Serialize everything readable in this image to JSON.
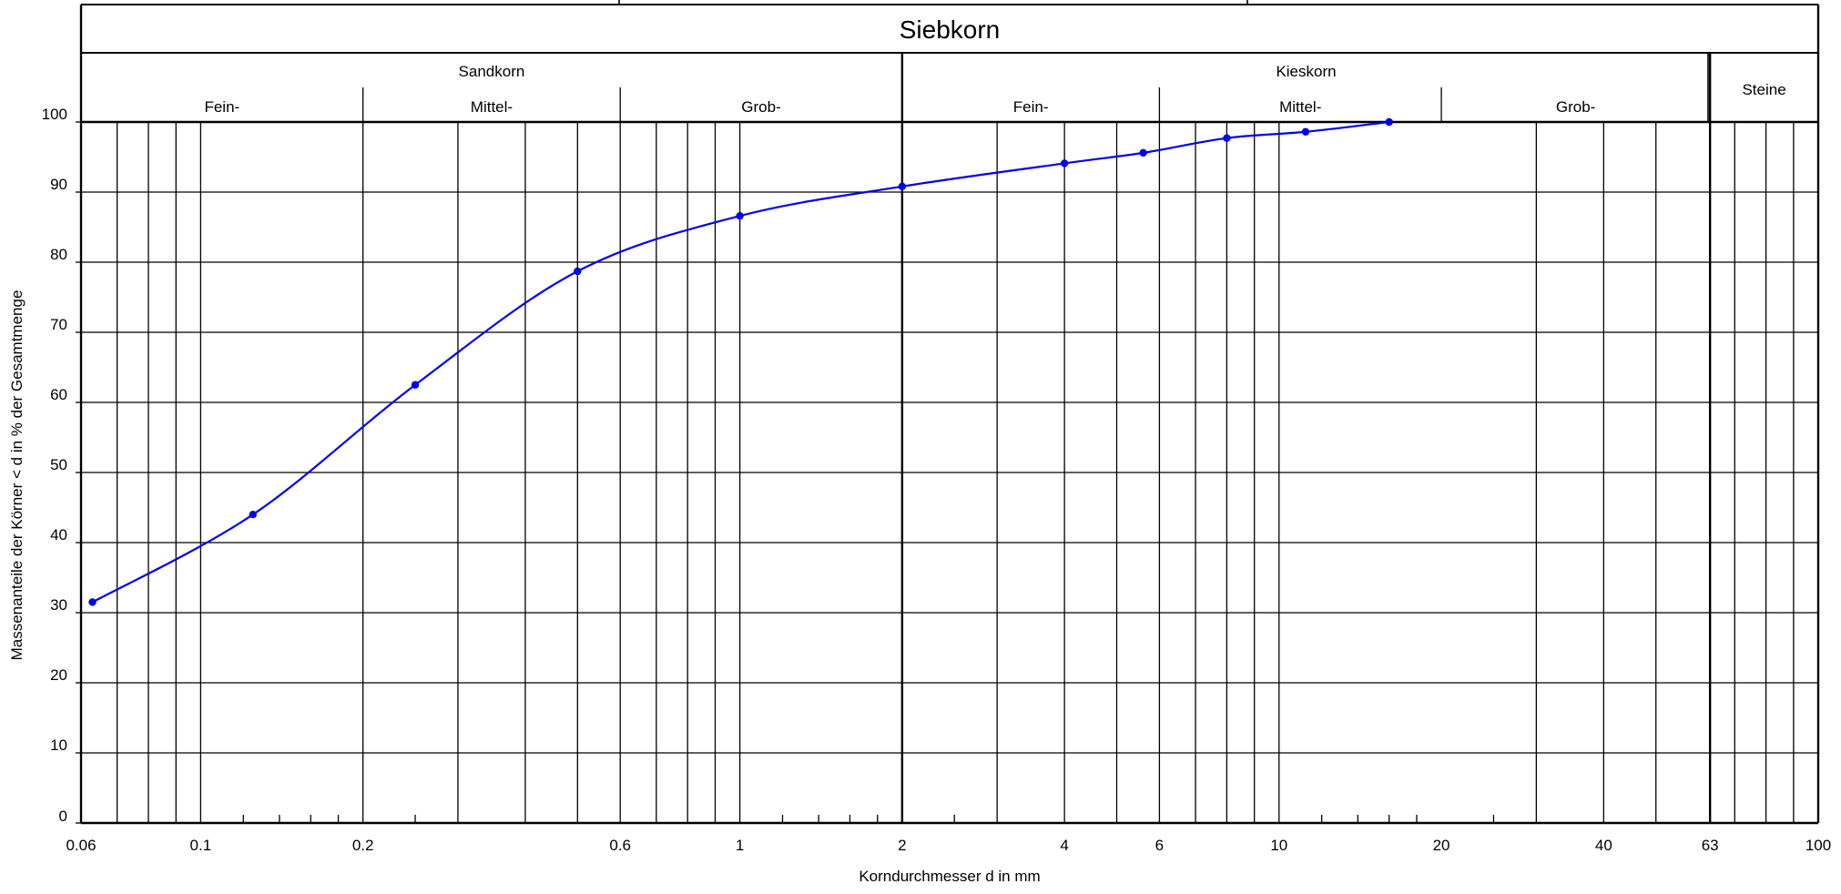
{
  "chart_data": {
    "type": "line",
    "title": "Siebkorn",
    "xlabel": "Korndurchmesser d in mm",
    "ylabel": "Massenanteile der Körner < d in % der Gesamtmenge",
    "xscale": "log",
    "xlim": [
      0.06,
      100
    ],
    "ylim": [
      0,
      100
    ],
    "grid": true,
    "x_ticks": [
      {
        "value": 0.06,
        "label": "0.06"
      },
      {
        "value": 0.1,
        "label": "0.1"
      },
      {
        "value": 0.2,
        "label": "0.2"
      },
      {
        "value": 0.6,
        "label": "0.6"
      },
      {
        "value": 1,
        "label": "1"
      },
      {
        "value": 2,
        "label": "2"
      },
      {
        "value": 4,
        "label": "4"
      },
      {
        "value": 6,
        "label": "6"
      },
      {
        "value": 10,
        "label": "10"
      },
      {
        "value": 20,
        "label": "20"
      },
      {
        "value": 40,
        "label": "40"
      },
      {
        "value": 63,
        "label": "63"
      },
      {
        "value": 100,
        "label": "100"
      }
    ],
    "y_ticks": [
      {
        "value": 0,
        "label": "0"
      },
      {
        "value": 10,
        "label": "10"
      },
      {
        "value": 20,
        "label": "20"
      },
      {
        "value": 30,
        "label": "30"
      },
      {
        "value": 40,
        "label": "40"
      },
      {
        "value": 50,
        "label": "50"
      },
      {
        "value": 60,
        "label": "60"
      },
      {
        "value": 70,
        "label": "70"
      },
      {
        "value": 80,
        "label": "80"
      },
      {
        "value": 90,
        "label": "90"
      },
      {
        "value": 100,
        "label": "100"
      }
    ],
    "groups": [
      {
        "label": "Sandkorn",
        "from": 0.06,
        "to": 2
      },
      {
        "label": "Kieskorn",
        "from": 2,
        "to": 63
      },
      {
        "label": "Steine",
        "from": 63,
        "to": 100
      }
    ],
    "subgroups": [
      {
        "label": "Fein-",
        "from": 0.06,
        "to": 0.2
      },
      {
        "label": "Mittel-",
        "from": 0.2,
        "to": 0.6
      },
      {
        "label": "Grob-",
        "from": 0.6,
        "to": 2
      },
      {
        "label": "Fein-",
        "from": 2,
        "to": 6
      },
      {
        "label": "Mittel-",
        "from": 6,
        "to": 20
      },
      {
        "label": "Grob-",
        "from": 20,
        "to": 63
      }
    ],
    "series": [
      {
        "color": "#0000ee",
        "x": [
          0.063,
          0.125,
          0.25,
          0.5,
          1,
          2,
          4,
          5.6,
          8,
          11.2,
          16
        ],
        "y": [
          31.5,
          44,
          62.5,
          78.7,
          86.6,
          90.8,
          94.1,
          95.6,
          97.7,
          98.6,
          100
        ]
      }
    ]
  }
}
